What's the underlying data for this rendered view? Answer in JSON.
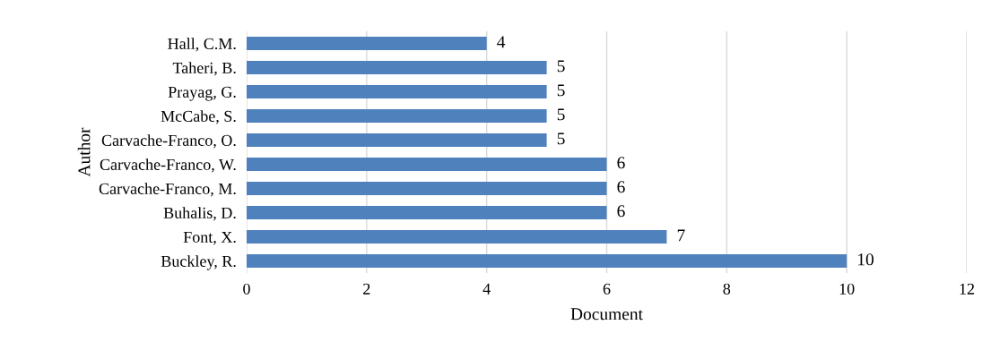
{
  "chart_data": {
    "type": "bar",
    "orientation": "horizontal",
    "xlabel": "Document",
    "ylabel": "Author",
    "categories": [
      "Hall, C.M.",
      "Taheri, B.",
      "Prayag, G.",
      "McCabe, S.",
      "Carvache-Franco, O.",
      "Carvache-Franco, W.",
      "Carvache-Franco, M.",
      "Buhalis, D.",
      "Font, X.",
      "Buckley, R."
    ],
    "values": [
      4,
      5,
      5,
      5,
      5,
      6,
      6,
      6,
      7,
      10
    ],
    "color": "#4f81bd",
    "xlim": [
      0,
      12
    ],
    "xticks": [
      0,
      2,
      4,
      6,
      8,
      10,
      12
    ],
    "grid": "x",
    "data_labels": true
  }
}
